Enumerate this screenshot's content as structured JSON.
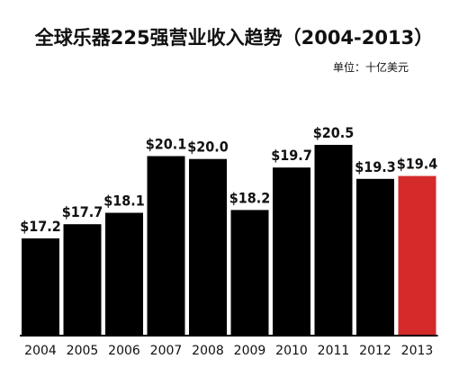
{
  "chart_data": {
    "type": "bar",
    "title": "全球乐器225强营业收入趋势（2004-2013）",
    "unit_label": "单位：十亿美元",
    "categories": [
      "2004",
      "2005",
      "2006",
      "2007",
      "2008",
      "2009",
      "2010",
      "2011",
      "2012",
      "2013"
    ],
    "values": [
      17.2,
      17.7,
      18.1,
      20.1,
      20.0,
      18.2,
      19.7,
      20.5,
      19.3,
      19.4
    ],
    "value_labels": [
      "$17.2",
      "$17.7",
      "$18.1",
      "$20.1",
      "$20.0",
      "$18.2",
      "$19.7",
      "$20.5",
      "$19.3",
      "$19.4"
    ],
    "xlabel": "",
    "ylabel": "",
    "ylim": [
      13.8,
      21.1
    ],
    "grid": false,
    "legend": "none",
    "colors": {
      "bar": "#000000",
      "highlight_bar": "#d42a2a",
      "axis": "#000000"
    },
    "highlight_index": 9
  }
}
